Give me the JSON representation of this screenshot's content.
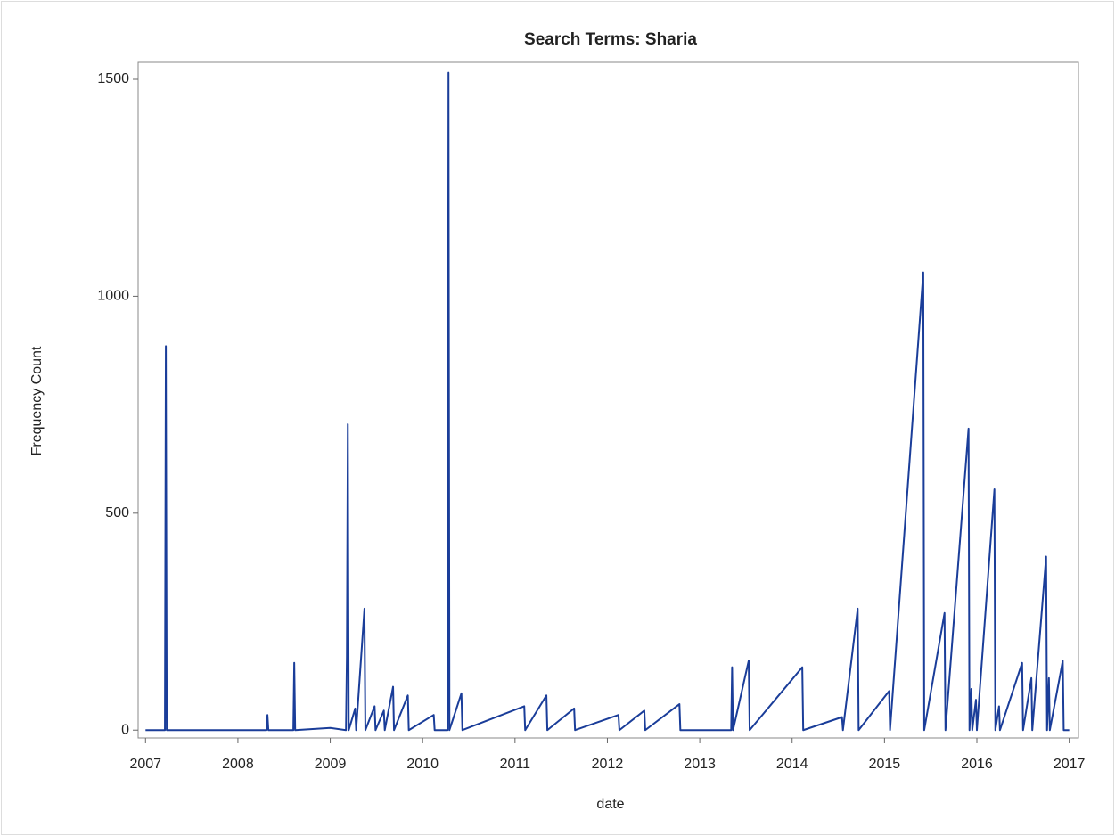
{
  "chart_data": {
    "type": "line",
    "title": "Search Terms: Sharia",
    "x_label": "date",
    "y_label": "Frequency Count",
    "x": [
      2007.0,
      2007.21,
      2007.22,
      2007.23,
      2008.31,
      2008.32,
      2008.33,
      2008.6,
      2008.61,
      2008.62,
      2009.0,
      2009.17,
      2009.18,
      2009.19,
      2009.2,
      2009.27,
      2009.28,
      2009.37,
      2009.38,
      2009.48,
      2009.49,
      2009.58,
      2009.59,
      2009.68,
      2009.69,
      2009.84,
      2009.85,
      2010.12,
      2010.13,
      2010.27,
      2010.28,
      2010.29,
      2010.42,
      2010.43,
      2011.1,
      2011.11,
      2011.34,
      2011.35,
      2011.64,
      2011.65,
      2012.12,
      2012.13,
      2012.4,
      2012.41,
      2012.78,
      2012.79,
      2013.34,
      2013.35,
      2013.36,
      2013.53,
      2013.54,
      2014.11,
      2014.12,
      2014.54,
      2014.55,
      2014.71,
      2014.72,
      2015.05,
      2015.06,
      2015.42,
      2015.43,
      2015.65,
      2015.66,
      2015.91,
      2015.92,
      2015.94,
      2015.95,
      2015.99,
      2016.0,
      2016.19,
      2016.2,
      2016.24,
      2016.25,
      2016.49,
      2016.5,
      2016.59,
      2016.6,
      2016.75,
      2016.76,
      2016.78,
      2016.79,
      2016.93,
      2016.94,
      2017.0
    ],
    "values": [
      0,
      0,
      885,
      0,
      0,
      35,
      0,
      0,
      155,
      0,
      5,
      0,
      170,
      705,
      0,
      50,
      0,
      280,
      0,
      55,
      0,
      45,
      0,
      100,
      0,
      80,
      0,
      35,
      0,
      0,
      1515,
      0,
      85,
      0,
      55,
      0,
      80,
      0,
      50,
      0,
      35,
      0,
      45,
      0,
      60,
      0,
      0,
      145,
      0,
      160,
      0,
      145,
      0,
      30,
      0,
      280,
      0,
      90,
      0,
      1055,
      0,
      270,
      0,
      695,
      0,
      95,
      0,
      70,
      0,
      555,
      0,
      55,
      0,
      155,
      0,
      120,
      0,
      400,
      0,
      120,
      0,
      160,
      0,
      0
    ],
    "color": "#1a3d99",
    "xlim": [
      2006.92,
      2017.1
    ],
    "xticks": [
      2007,
      2008,
      2009,
      2010,
      2011,
      2012,
      2013,
      2014,
      2015,
      2016,
      2017
    ],
    "ylim": [
      -18,
      1539
    ],
    "yticks": [
      0,
      500,
      1000,
      1500
    ],
    "grid": false
  }
}
